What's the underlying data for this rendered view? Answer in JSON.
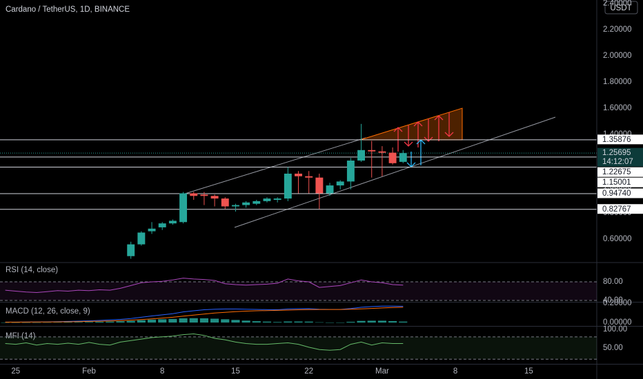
{
  "chart_data": {
    "type": "candlestick",
    "title": "Cardano / TetherUS, 1D, BINANCE",
    "currency": "USDT",
    "categories": [
      null,
      "25",
      null,
      null,
      null,
      null,
      null,
      null,
      "Feb",
      null,
      null,
      null,
      null,
      null,
      null,
      "8",
      null,
      null,
      null,
      null,
      null,
      null,
      "15",
      null,
      null,
      null,
      null,
      null,
      null,
      "22",
      null,
      null,
      null,
      null,
      null,
      null,
      "Mar",
      null,
      null,
      null,
      null,
      null,
      null,
      "8",
      null,
      null,
      null,
      null,
      null,
      null,
      "15",
      null,
      null,
      null,
      null,
      null,
      null
    ],
    "open": [
      null,
      null,
      null,
      null,
      null,
      null,
      null,
      null,
      null,
      null,
      null,
      null,
      0.47,
      0.56,
      0.66,
      0.69,
      0.72,
      0.73,
      0.95,
      0.94,
      0.93,
      0.91,
      0.85,
      0.86,
      0.87,
      0.89,
      0.9,
      0.91,
      1.1,
      1.08,
      1.07,
      0.95,
      1.01,
      1.04,
      1.2,
      1.28,
      1.27,
      1.26,
      1.19,
      null,
      null,
      null,
      null,
      null,
      null,
      null,
      null,
      null,
      null,
      null,
      null,
      null,
      null,
      null,
      null,
      null,
      null
    ],
    "high": [
      null,
      null,
      null,
      null,
      null,
      null,
      null,
      null,
      null,
      null,
      null,
      null,
      0.58,
      0.66,
      0.73,
      0.73,
      0.75,
      0.96,
      0.96,
      0.96,
      0.94,
      0.92,
      0.87,
      0.89,
      0.9,
      0.92,
      0.92,
      1.15,
      1.12,
      1.12,
      1.1,
      1.03,
      1.05,
      1.22,
      1.48,
      1.35,
      1.31,
      1.3,
      1.28,
      null,
      null,
      null,
      null,
      null,
      null,
      null,
      null,
      null,
      null,
      null,
      null,
      null,
      null,
      null,
      null,
      null,
      null
    ],
    "low": [
      null,
      null,
      null,
      null,
      null,
      null,
      null,
      null,
      null,
      null,
      null,
      null,
      0.45,
      0.55,
      0.64,
      0.67,
      0.71,
      0.72,
      0.9,
      0.86,
      0.85,
      0.83,
      0.81,
      0.84,
      0.86,
      0.88,
      0.88,
      0.89,
      0.95,
      0.95,
      0.83,
      0.93,
      0.98,
      0.98,
      1.19,
      1.07,
      1.08,
      1.17,
      1.18,
      null,
      null,
      null,
      null,
      null,
      null,
      null,
      null,
      null,
      null,
      null,
      null,
      null,
      null,
      null,
      null,
      null,
      null
    ],
    "close": [
      null,
      null,
      null,
      null,
      null,
      null,
      null,
      null,
      null,
      null,
      null,
      null,
      0.56,
      0.65,
      0.68,
      0.72,
      0.74,
      0.95,
      0.93,
      0.93,
      0.91,
      0.85,
      0.86,
      0.88,
      0.89,
      0.91,
      0.91,
      1.1,
      1.08,
      1.07,
      0.95,
      1.01,
      1.04,
      1.2,
      1.28,
      1.27,
      1.26,
      1.18,
      1.25695,
      null,
      null,
      null,
      null,
      null,
      null,
      null,
      null,
      null,
      null,
      null,
      null,
      null,
      null,
      null,
      null,
      null,
      null
    ],
    "up_color": "#26a69a",
    "down_color": "#ef5350",
    "ylim": [
      0.4263,
      2.4263
    ],
    "yticks": [
      {
        "value": 0.6,
        "label": "0.60000"
      },
      {
        "value": 0.8,
        "label": "0.80000"
      },
      {
        "value": 1.0,
        "label": "1.00000"
      },
      {
        "value": 1.2,
        "label": "1.20000"
      },
      {
        "value": 1.4,
        "label": "1.40000"
      },
      {
        "value": 1.6,
        "label": "1.60000"
      },
      {
        "value": 1.8,
        "label": "1.80000"
      },
      {
        "value": 2.0,
        "label": "2.00000"
      },
      {
        "value": 2.2,
        "label": "2.20000"
      },
      {
        "value": 2.4,
        "label": "2.40000"
      }
    ],
    "price_levels": [
      1.35876,
      1.22675,
      1.15001,
      {
        "value": 0.9474,
        "label": "0.94740"
      },
      0.82767
    ],
    "current_price": 1.25695,
    "countdown": "14:12:07",
    "rsi": {
      "title": "RSI (14, close)",
      "color": "#ab47bc",
      "ylim": [
        37,
        118.5
      ],
      "yticks": [
        {
          "value": 40,
          "label": "40.00"
        },
        {
          "value": 80,
          "label": "80.00"
        }
      ],
      "bands": [
        80,
        40
      ],
      "values": [
        62,
        60,
        58,
        57,
        59,
        61,
        60,
        62,
        61,
        63,
        62,
        66,
        72,
        78,
        80,
        81,
        84,
        88,
        86,
        85,
        83,
        76,
        74,
        73,
        74,
        75,
        77,
        86,
        82,
        80,
        68,
        70,
        72,
        78,
        84,
        80,
        78,
        74,
        73,
        null,
        null,
        null,
        null,
        null,
        null,
        null,
        null,
        null,
        null,
        null,
        null,
        null,
        null,
        null,
        null,
        null,
        null
      ]
    },
    "macd": {
      "title": "MACD (12, 26, close, 9)",
      "ylim": [
        -0.035,
        0.2
      ],
      "yticks": [
        {
          "value": 0,
          "label": "0.00000"
        },
        {
          "value": 0.2,
          "label": "0.20000"
        }
      ],
      "macd_line": {
        "color": "#2962ff",
        "values": [
          0.005,
          0.005,
          0.006,
          0.007,
          0.008,
          0.01,
          0.012,
          0.015,
          0.018,
          0.022,
          0.027,
          0.033,
          0.042,
          0.055,
          0.068,
          0.08,
          0.092,
          0.11,
          0.122,
          0.132,
          0.138,
          0.14,
          0.14,
          0.138,
          0.136,
          0.134,
          0.132,
          0.14,
          0.143,
          0.144,
          0.138,
          0.136,
          0.136,
          0.145,
          0.158,
          0.165,
          0.17,
          0.17,
          0.168,
          null,
          null,
          null,
          null,
          null,
          null,
          null,
          null,
          null,
          null,
          null,
          null,
          null,
          null,
          null,
          null,
          null,
          null
        ]
      },
      "signal": {
        "color": "#ff6d00",
        "values": [
          0.004,
          0.004,
          0.005,
          0.006,
          0.006,
          0.007,
          0.008,
          0.01,
          0.012,
          0.014,
          0.017,
          0.02,
          0.025,
          0.031,
          0.038,
          0.046,
          0.055,
          0.066,
          0.077,
          0.088,
          0.098,
          0.106,
          0.113,
          0.118,
          0.122,
          0.124,
          0.126,
          0.129,
          0.132,
          0.134,
          0.135,
          0.135,
          0.135,
          0.137,
          0.141,
          0.146,
          0.151,
          0.155,
          0.158,
          null,
          null,
          null,
          null,
          null,
          null,
          null,
          null,
          null,
          null,
          null,
          null,
          null,
          null,
          null,
          null,
          null,
          null
        ]
      },
      "histogram": {
        "color": "#26a69a",
        "values": [
          0.001,
          0.001,
          0.001,
          0.001,
          0.002,
          0.003,
          0.004,
          0.005,
          0.006,
          0.008,
          0.01,
          0.013,
          0.017,
          0.024,
          0.03,
          0.034,
          0.037,
          0.044,
          0.045,
          0.044,
          0.04,
          0.034,
          0.027,
          0.02,
          0.014,
          0.01,
          0.006,
          0.011,
          0.011,
          0.01,
          0.003,
          0.001,
          0.001,
          0.008,
          0.017,
          0.019,
          0.019,
          0.015,
          0.01,
          null,
          null,
          null,
          null,
          null,
          null,
          null,
          null,
          null,
          null,
          null,
          null,
          null,
          null,
          null,
          null,
          null,
          null
        ]
      }
    },
    "mfi": {
      "title": "MFI (14)",
      "color": "#66bb6a",
      "ylim": [
        7.4,
        105.6
      ],
      "yticks": [
        {
          "value": 50,
          "label": "50.00"
        },
        {
          "value": 100,
          "label": "100.00"
        }
      ],
      "bands": [
        80,
        20
      ],
      "values": [
        62,
        60,
        64,
        58,
        62,
        60,
        63,
        60,
        65,
        60,
        58,
        66,
        70,
        74,
        78,
        80,
        82,
        86,
        88,
        84,
        76,
        72,
        66,
        62,
        60,
        60,
        62,
        64,
        60,
        52,
        46,
        44,
        46,
        60,
        66,
        58,
        64,
        62,
        62,
        null,
        null,
        null,
        null,
        null,
        null,
        null,
        null,
        null,
        null,
        null,
        null,
        null,
        null,
        null,
        null,
        null,
        null
      ]
    }
  }
}
